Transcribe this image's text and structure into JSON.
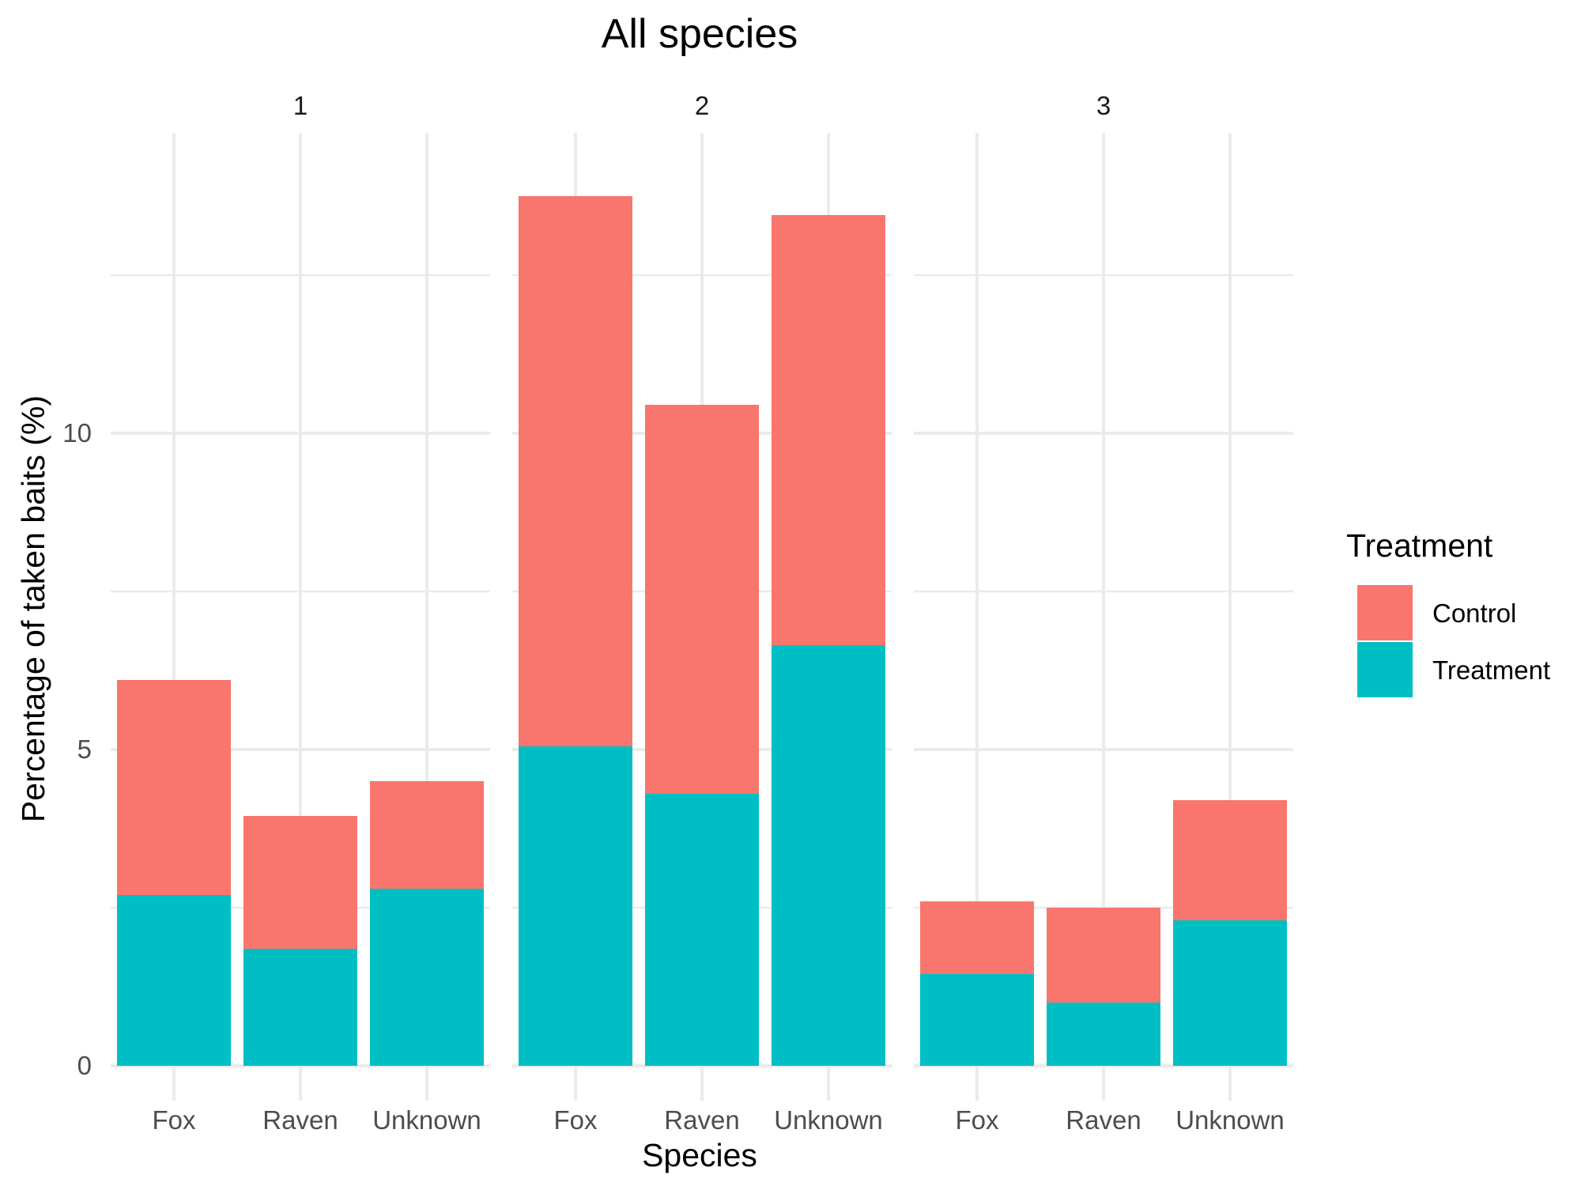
{
  "chart_data": {
    "type": "bar",
    "stacked": true,
    "title": "All species",
    "xlabel": "Species",
    "ylabel": "Percentage of taken baits (%)",
    "ylim": [
      -0.55,
      14.75
    ],
    "yticks": [
      0,
      5,
      10
    ],
    "grid": true,
    "legend": {
      "title": "Treatment",
      "position": "right"
    },
    "categories": [
      "Fox",
      "Raven",
      "Unknown"
    ],
    "facets": [
      {
        "label": "1",
        "series": [
          {
            "name": "Treatment",
            "color": "#00BFC4",
            "values": [
              2.7,
              1.85,
              2.8
            ]
          },
          {
            "name": "Control",
            "color": "#F8766D",
            "values": [
              3.4,
              2.1,
              1.7
            ]
          }
        ]
      },
      {
        "label": "2",
        "series": [
          {
            "name": "Treatment",
            "color": "#00BFC4",
            "values": [
              5.05,
              4.3,
              6.65
            ]
          },
          {
            "name": "Control",
            "color": "#F8766D",
            "values": [
              8.7,
              6.15,
              6.8
            ]
          }
        ]
      },
      {
        "label": "3",
        "series": [
          {
            "name": "Treatment",
            "color": "#00BFC4",
            "values": [
              1.45,
              1.0,
              2.3
            ]
          },
          {
            "name": "Control",
            "color": "#F8766D",
            "values": [
              1.15,
              1.5,
              1.9
            ]
          }
        ]
      }
    ]
  }
}
